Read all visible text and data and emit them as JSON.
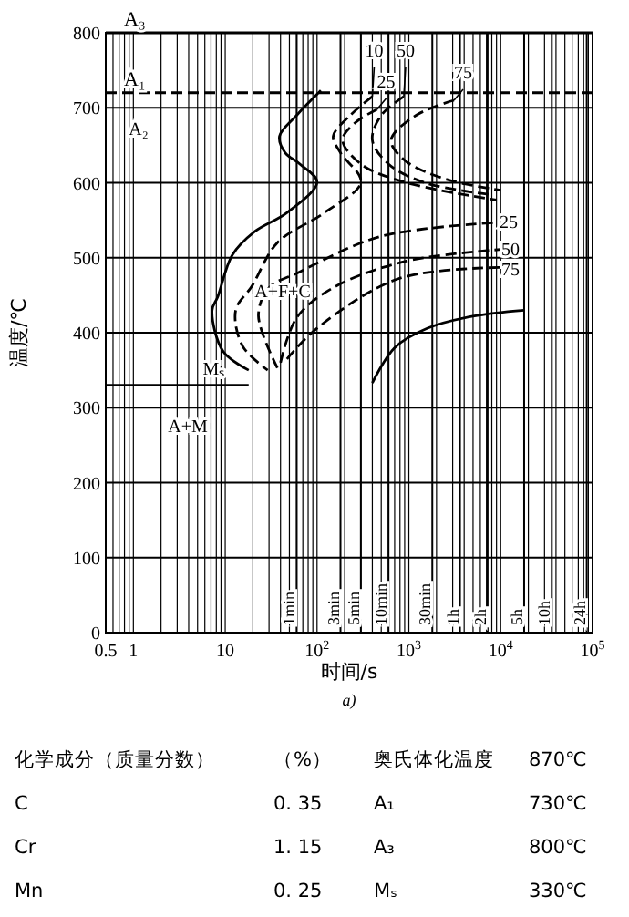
{
  "chart_data": [
    {
      "type": "line",
      "xlabel": "时间/s",
      "ylabel": "温度/℃",
      "log": "x",
      "grid": true,
      "marker": "none",
      "xlim": [
        0.5,
        100000
      ],
      "ylim": [
        0,
        800
      ],
      "xticks": [
        0.5,
        1,
        10,
        {
          "value": 100,
          "label": "10$^{2}$"
        },
        {
          "value": 1000,
          "label": "10$^{3}$"
        },
        {
          "value": 10000,
          "label": "10$^{4}$"
        },
        {
          "value": 100000,
          "label": "10$^{5}$"
        }
      ],
      "yticks": [
        0,
        100,
        200,
        300,
        400,
        500,
        600,
        700,
        800
      ],
      "series": [
        {
          "color": "#000000",
          "line_style": "solid",
          "x": [
            110,
            60,
            39,
            45,
            65,
            100,
            47,
            21,
            12,
            8.3,
            7.2,
            9.5,
            18
          ],
          "values": [
            723,
            690,
            662,
            640,
            625,
            601,
            560,
            535,
            504,
            448,
            430,
            375,
            350
          ]
        },
        {
          "name": "10",
          "color": "#000000",
          "line_style": "dashed",
          "x": [
            400,
            230,
            150,
            180,
            300,
            120,
            37,
            19.5,
            13,
            15.5,
            29
          ],
          "values": [
            715,
            690,
            662,
            640,
            601,
            560,
            520,
            462,
            430,
            382,
            350
          ]
        },
        {
          "name": "25",
          "color": "#000000",
          "line_style": "dashed",
          "x": [
            450,
            260,
            190,
            300,
            880,
            9000
          ],
          "values": [
            698,
            680,
            657,
            625,
            601,
            577
          ]
        },
        {
          "name": "50",
          "color": "#000000",
          "line_style": "dashed",
          "x": [
            880,
            500,
            400,
            600,
            1500,
            8000
          ],
          "values": [
            715,
            690,
            657,
            625,
            600,
            584
          ]
        },
        {
          "name": "75",
          "color": "#000000",
          "line_style": "dashed",
          "x": [
            3100,
            1200,
            640,
            900,
            2500,
            10000
          ],
          "values": [
            710,
            690,
            657,
            630,
            605,
            590
          ]
        },
        {
          "color": "#000000",
          "line_style": "dashed",
          "x": [
            37,
            23,
            30,
            62,
            480,
            9000
          ],
          "values": [
            353,
            423,
            460,
            480,
            528,
            547
          ]
        },
        {
          "color": "#000000",
          "line_style": "dashed",
          "x": [
            40,
            60,
            150,
            900,
            10000
          ],
          "values": [
            360,
            420,
            460,
            495,
            511
          ]
        },
        {
          "color": "#000000",
          "line_style": "dashed",
          "x": [
            47,
            100,
            770,
            10000
          ],
          "values": [
            365,
            406,
            472,
            487
          ]
        },
        {
          "color": "#000000",
          "line_style": "solid",
          "x": [
            400,
            700,
            1600,
            5000,
            18000
          ],
          "values": [
            333,
            380,
            406,
            422,
            430
          ]
        },
        {
          "name": "Mₛ",
          "color": "#000000",
          "line_style": "solid",
          "x": [
            0.5,
            18
          ],
          "values": [
            330,
            330
          ]
        }
      ],
      "ref_lines": [
        {
          "axis": "y",
          "value": 800,
          "label": "A₃",
          "line_style": "solid"
        },
        {
          "axis": "y",
          "value": 720,
          "label": "A₁",
          "line_style": "dashed"
        },
        {
          "axis": "x",
          "value": 60,
          "label": "1min",
          "line_style": "solid"
        },
        {
          "axis": "x",
          "value": 180,
          "label": "3min",
          "line_style": "solid"
        },
        {
          "axis": "x",
          "value": 300,
          "label": "5min",
          "line_style": "solid"
        },
        {
          "axis": "x",
          "value": 600,
          "label": "10min",
          "line_style": "solid"
        },
        {
          "axis": "x",
          "value": 1800,
          "label": "30min",
          "line_style": "solid"
        },
        {
          "axis": "x",
          "value": 3600,
          "label": "1h",
          "line_style": "solid"
        },
        {
          "axis": "x",
          "value": 7200,
          "label": "2h",
          "line_style": "solid"
        },
        {
          "axis": "x",
          "value": 18000,
          "label": "5h",
          "line_style": "solid"
        },
        {
          "axis": "x",
          "value": 36000,
          "label": "10h",
          "line_style": "solid"
        },
        {
          "axis": "x",
          "value": 86400,
          "label": "24h",
          "line_style": "solid"
        }
      ],
      "annotations": [
        "A₂",
        "A+F+C",
        "A+M",
        "25",
        "50",
        "75",
        "a)"
      ]
    },
    {
      "type": "other",
      "annotations": [
        "化学成分（质量分数）",
        "（%）",
        "奥氏体化温度",
        "870℃",
        "C",
        "0. 35",
        "A₁",
        "730℃",
        "Cr",
        "1. 15",
        "A₃",
        "800℃",
        "Mn",
        "0. 25",
        "Mₛ",
        "330℃"
      ]
    }
  ]
}
